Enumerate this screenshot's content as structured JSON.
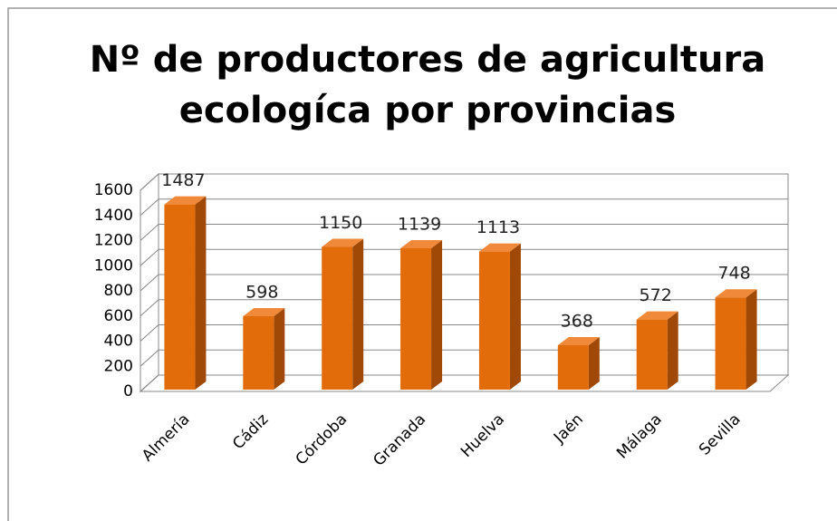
{
  "chart_data": {
    "type": "bar",
    "title": [
      "Nº de productores de agricultura",
      "ecologíca por provincias"
    ],
    "categories": [
      "Almería",
      "Cádiz",
      "Córdoba",
      "Granada",
      "Huelva",
      "Jaén",
      "Málaga",
      "Sevilla"
    ],
    "values": [
      1487,
      598,
      1150,
      1139,
      1113,
      368,
      572,
      748
    ],
    "color": "#e36c0a",
    "ylim": [
      0,
      1600
    ],
    "yticks": [
      0,
      200,
      400,
      600,
      800,
      1000,
      1200,
      1400,
      1600
    ],
    "grid": true
  }
}
